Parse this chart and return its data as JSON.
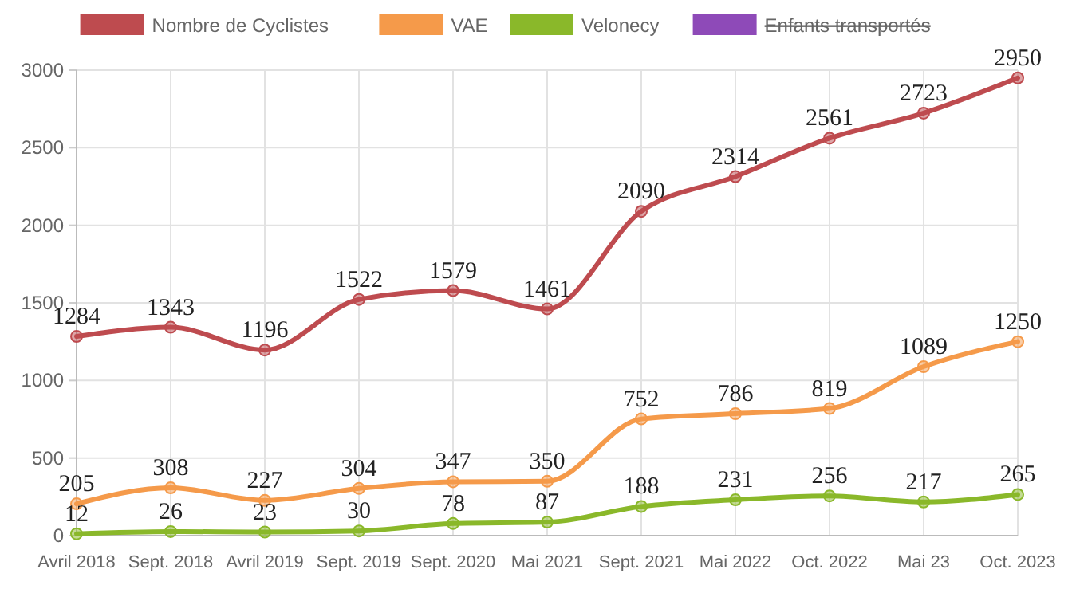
{
  "chart_data": {
    "type": "line",
    "categories": [
      "Avril 2018",
      "Sept. 2018",
      "Avril 2019",
      "Sept. 2019",
      "Sept. 2020",
      "Mai 2021",
      "Sept. 2021",
      "Mai 2022",
      "Oct. 2022",
      "Mai 23",
      "Oct. 2023"
    ],
    "series": [
      {
        "name": "Nombre de Cyclistes",
        "color": "#be4b4f",
        "values": [
          1284,
          1343,
          1196,
          1522,
          1579,
          1461,
          2090,
          2314,
          2561,
          2723,
          2950
        ]
      },
      {
        "name": "VAE",
        "color": "#f59a4a",
        "values": [
          205,
          308,
          227,
          304,
          347,
          350,
          752,
          786,
          819,
          1089,
          1250
        ]
      },
      {
        "name": "Velonecy",
        "color": "#8ab82a",
        "values": [
          12,
          26,
          23,
          30,
          78,
          87,
          188,
          231,
          256,
          217,
          265
        ]
      },
      {
        "name": "Enfants transportés",
        "color": "#8e4ab8",
        "values": [
          null,
          null,
          null,
          null,
          null,
          null,
          null,
          null,
          null,
          null,
          null
        ]
      }
    ],
    "ylim": [
      0,
      3000
    ],
    "yticks": [
      0,
      500,
      1000,
      1500,
      2000,
      2500,
      3000
    ],
    "grid": true,
    "legend": "top",
    "marker": "circle",
    "line_style": "solid",
    "data_labels": true
  }
}
